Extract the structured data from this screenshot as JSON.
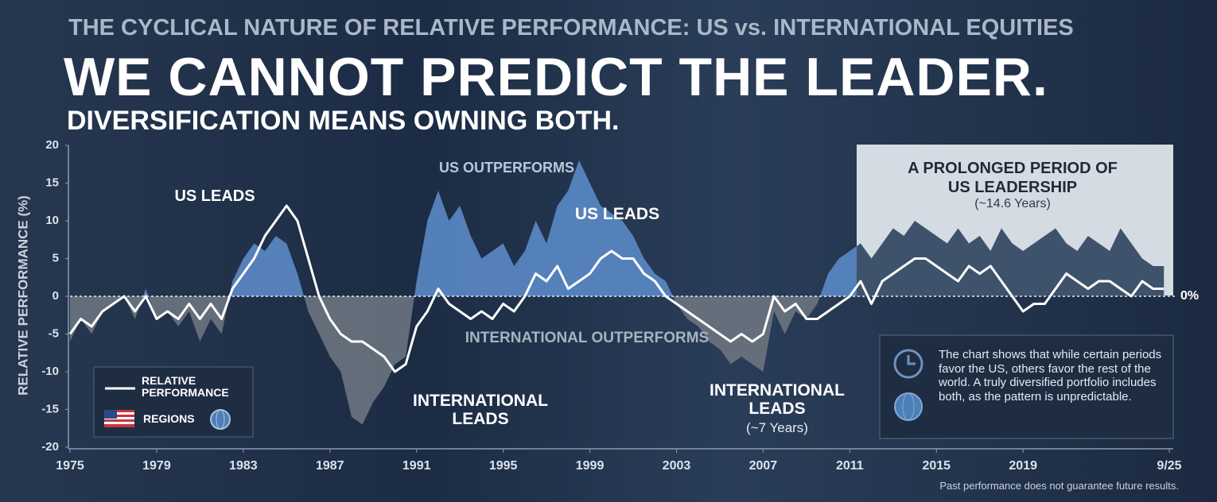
{
  "chart_data": {
    "type": "area-line",
    "supertitle": "THE CYCLICAL NATURE OF RELATIVE PERFORMANCE: US vs. INTERNATIONAL EQUITIES",
    "title": "WE CANNOT PREDICT THE LEADER.",
    "subtitle": "DIVERSIFICATION MEANS OWNING BOTH.",
    "y_label": "RELATIVE PERFORMANCE (%)",
    "zero_label": "0%",
    "x": [
      1975,
      1975.5,
      1976,
      1976.5,
      1977,
      1977.5,
      1978,
      1978.5,
      1979,
      1979.5,
      1980,
      1980.5,
      1981,
      1981.5,
      1982,
      1982.5,
      1983,
      1983.5,
      1984,
      1984.5,
      1985,
      1985.5,
      1986,
      1986.5,
      1987,
      1987.5,
      1988,
      1988.5,
      1989,
      1989.5,
      1990,
      1990.5,
      1991,
      1991.5,
      1992,
      1992.5,
      1993,
      1993.5,
      1994,
      1994.5,
      1995,
      1995.5,
      1996,
      1996.5,
      1997,
      1997.5,
      1998,
      1998.5,
      1999,
      1999.5,
      2000,
      2000.5,
      2001,
      2001.5,
      2002,
      2002.5,
      2003,
      2003.5,
      2004,
      2004.5,
      2005,
      2005.5,
      2006,
      2006.5,
      2007,
      2007.5,
      2008,
      2008.5,
      2009,
      2009.5,
      2010,
      2010.5,
      2011,
      2011.5,
      2012,
      2012.5,
      2013,
      2013.5,
      2014,
      2014.5,
      2015,
      2015.5,
      2016,
      2016.5,
      2017,
      2017.5,
      2018,
      2018.5,
      2019,
      2019.5,
      2020,
      2020.5,
      2021,
      2021.5,
      2022,
      2022.5,
      2023,
      2023.5,
      2024,
      2024.5,
      2025,
      2025.5
    ],
    "series": [
      {
        "name": "REGIONS",
        "kind": "area",
        "color": "#5b8ac6",
        "neg_color": "#6b7480",
        "recent_color": "#3b4b60",
        "values": [
          -6,
          -3,
          -5,
          -2,
          -1,
          0,
          -3,
          1,
          -3,
          -2,
          -4,
          -2,
          -6,
          -3,
          -5,
          2,
          5,
          7,
          6,
          8,
          7,
          3,
          -2,
          -5,
          -8,
          -10,
          -16,
          -17,
          -14,
          -12,
          -9,
          -8,
          2,
          10,
          14,
          10,
          12,
          8,
          5,
          6,
          7,
          4,
          6,
          10,
          7,
          12,
          14,
          18,
          15,
          12,
          11,
          10,
          8,
          5,
          3,
          2,
          -1,
          -3,
          -4,
          -6,
          -7,
          -9,
          -8,
          -9,
          -10,
          -2,
          -5,
          -2,
          -3,
          -1,
          3,
          5,
          6,
          7,
          5,
          7,
          9,
          8,
          10,
          9,
          8,
          7,
          9,
          7,
          8,
          6,
          9,
          7,
          6,
          7,
          8,
          9,
          7,
          6,
          8,
          7,
          6,
          9,
          7,
          5,
          4,
          4
        ]
      },
      {
        "name": "RELATIVE PERFORMANCE",
        "kind": "line",
        "color": "#ffffff",
        "values": [
          -5,
          -3,
          -4,
          -2,
          -1,
          0,
          -2,
          0,
          -3,
          -2,
          -3,
          -1,
          -3,
          -1,
          -3,
          1,
          3,
          5,
          8,
          10,
          12,
          10,
          5,
          0,
          -3,
          -5,
          -6,
          -6,
          -7,
          -8,
          -10,
          -9,
          -4,
          -2,
          1,
          -1,
          -2,
          -3,
          -2,
          -3,
          -1,
          -2,
          0,
          3,
          2,
          4,
          1,
          2,
          3,
          5,
          6,
          5,
          5,
          3,
          2,
          0,
          -1,
          -2,
          -3,
          -4,
          -5,
          -6,
          -5,
          -6,
          -5,
          0,
          -2,
          -1,
          -3,
          -3,
          -2,
          -1,
          0,
          2,
          -1,
          2,
          3,
          4,
          5,
          5,
          4,
          3,
          2,
          4,
          3,
          4,
          2,
          0,
          -2,
          -1,
          -1,
          1,
          3,
          2,
          1,
          2,
          2,
          1,
          0,
          2,
          1,
          1
        ]
      }
    ],
    "xlim": [
      1975,
      2025.75
    ],
    "xticks": [
      1975,
      1979,
      1983,
      1987,
      1991,
      1995,
      1999,
      2003,
      2007,
      2011,
      2015,
      2019,
      {
        "value": 2025.75,
        "label": "9/25"
      }
    ],
    "ylim": [
      -20,
      20
    ],
    "yticks": [
      20,
      15,
      10,
      5,
      0,
      -5,
      -10,
      -15,
      -20
    ],
    "annotations": [
      {
        "text": "US LEADS"
      },
      {
        "text": "US OUTPERFORMS"
      },
      {
        "text": "US LEADS"
      },
      {
        "text": "INTERNATIONAL OUTPERFORMS"
      },
      {
        "text": "INTERNATIONAL LEADS"
      },
      {
        "text": "INTERNATIONAL LEADS"
      },
      {
        "text": "(~7 Years)"
      },
      {
        "text": "A PROLONGED PERIOD OF US LEADERSHIP"
      },
      {
        "text": "(~14.6 Years)"
      }
    ],
    "info_text": "The chart shows that while certain periods favor the US, others favor the rest of the world. A truly diversified portfolio includes both, as the pattern is unpredictable.",
    "footnote": "Past performance does not guarantee future results."
  }
}
